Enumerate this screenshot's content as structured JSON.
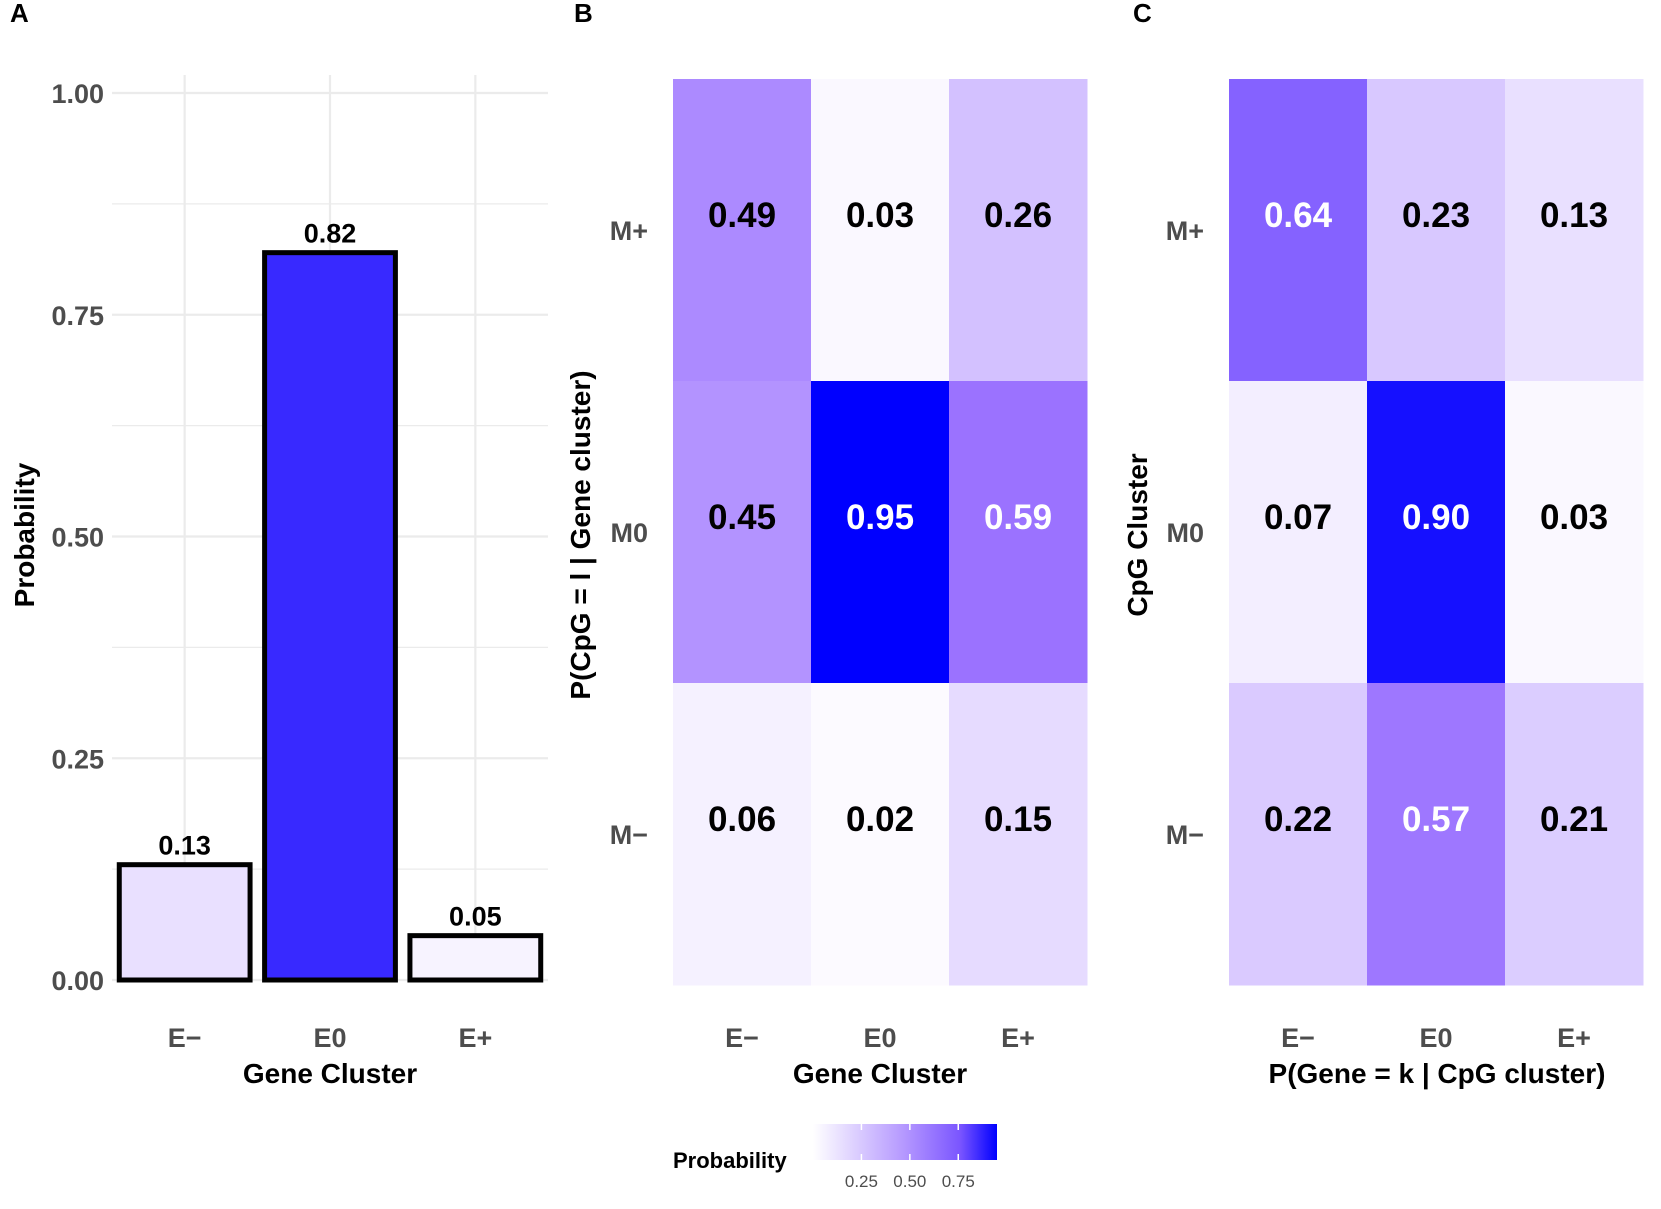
{
  "colors": {
    "low": "#ffffff",
    "mid": "#9b72ff",
    "high": "#0000ff",
    "grid": "#ebebeb",
    "bar_outline": "#000000"
  },
  "chart_data": [
    {
      "panel": "A",
      "type": "bar",
      "categories": [
        "E−",
        "E0",
        "E+"
      ],
      "values": [
        0.13,
        0.82,
        0.05
      ],
      "value_labels": [
        "0.13",
        "0.82",
        "0.05"
      ],
      "xlabel": "Gene Cluster",
      "ylabel": "Probability",
      "ylim": [
        0,
        1.0
      ],
      "yticks": [
        0.0,
        0.25,
        0.5,
        0.75,
        1.0
      ],
      "ytick_labels": [
        "0.00",
        "0.25",
        "0.50",
        "0.75",
        "1.00"
      ],
      "grid": true
    },
    {
      "panel": "B",
      "type": "heatmap",
      "x_categories": [
        "E−",
        "E0",
        "E+"
      ],
      "y_categories": [
        "M+",
        "M0",
        "M−"
      ],
      "values": [
        [
          0.49,
          0.03,
          0.26
        ],
        [
          0.45,
          0.95,
          0.59
        ],
        [
          0.06,
          0.02,
          0.15
        ]
      ],
      "value_labels": [
        [
          "0.49",
          "0.03",
          "0.26"
        ],
        [
          "0.45",
          "0.95",
          "0.59"
        ],
        [
          "0.06",
          "0.02",
          "0.15"
        ]
      ],
      "xlabel": "Gene Cluster",
      "ylabel": "P(CpG = l | Gene cluster)"
    },
    {
      "panel": "C",
      "type": "heatmap",
      "x_categories": [
        "E−",
        "E0",
        "E+"
      ],
      "y_categories": [
        "M+",
        "M0",
        "M−"
      ],
      "values": [
        [
          0.64,
          0.23,
          0.13
        ],
        [
          0.07,
          0.9,
          0.03
        ],
        [
          0.22,
          0.57,
          0.21
        ]
      ],
      "value_labels": [
        [
          "0.64",
          "0.23",
          "0.13"
        ],
        [
          "0.07",
          "0.90",
          "0.03"
        ],
        [
          "0.22",
          "0.57",
          "0.21"
        ]
      ],
      "xlabel": "P(Gene = k | CpG cluster)",
      "ylabel": "CpG Cluster"
    }
  ],
  "legend": {
    "title": "Probability",
    "range": [
      0,
      0.95
    ],
    "ticks": [
      0.25,
      0.5,
      0.75
    ],
    "tick_labels": [
      "0.25",
      "0.50",
      "0.75"
    ]
  }
}
